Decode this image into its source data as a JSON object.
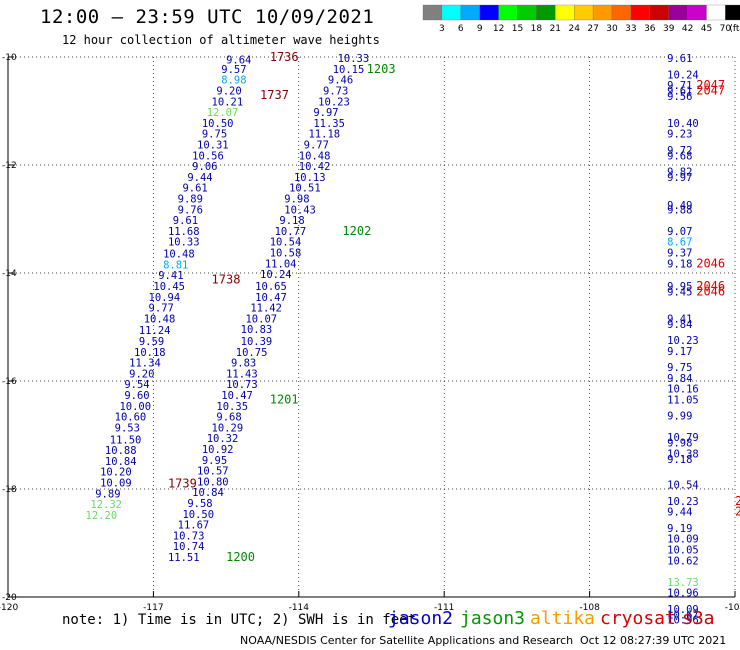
{
  "header": {
    "title": "12:00 – 23:59 UTC 10/09/2021",
    "subtitle": "12 hour collection of altimeter wave heights"
  },
  "colorbar": {
    "unit_label": "(ft)",
    "colors": [
      "#808080",
      "#00ffff",
      "#00aaff",
      "#0000ff",
      "#00ff00",
      "#00cc00",
      "#009900",
      "#ffff00",
      "#ffcc00",
      "#ff9900",
      "#ff6600",
      "#ff0000",
      "#cc0000",
      "#990099",
      "#cc00cc",
      "#ffffff",
      "#000000"
    ],
    "ticks": [
      "3",
      "6",
      "9",
      "12",
      "15",
      "18",
      "21",
      "24",
      "27",
      "30",
      "33",
      "36",
      "39",
      "42",
      "45",
      "70"
    ]
  },
  "note": "note: 1) Time is in UTC; 2) SWH is in feet",
  "satellites": [
    {
      "name": "jason2",
      "color": "#0000cc"
    },
    {
      "name": "jason3",
      "color": "#009900"
    },
    {
      "name": "altika",
      "color": "#ff9900"
    },
    {
      "name": "cryosat",
      "color": "#dd0000"
    },
    {
      "name": "s3a",
      "color": "#cc0000"
    }
  ],
  "footer": {
    "credit": "NOAA/NESDIS Center for Satellite Applications and Research",
    "timestamp": "Oct 12 08:27:39 UTC 2021"
  },
  "chart_data": {
    "type": "scatter",
    "title": "12:00 – 23:59 UTC 10/09/2021",
    "xlim": [
      -120,
      -105
    ],
    "ylim": [
      -20,
      -10
    ],
    "x_ticks": [
      -120,
      -117,
      -114,
      -111,
      -108,
      -105
    ],
    "y_ticks": [
      -10,
      -12,
      -14,
      -16,
      -18,
      -20
    ],
    "x_tick_labels": [
      "-120",
      "-117",
      "-114",
      "-111",
      "-108",
      "-105"
    ],
    "y_tick_labels": [
      "-10",
      "-12",
      "-14",
      "-16",
      "-18",
      "-20"
    ],
    "grid": "dotted",
    "legend": "bottom",
    "colors": {
      "dk": "#0000aa",
      "lc": "#00aaee",
      "lg": "#66dd66",
      "t": "#880000",
      "g": "#008800",
      "r": "#dd0000"
    },
    "points": [
      {
        "x": -115.5,
        "y": -10.05,
        "v": "9.64",
        "c": "dk"
      },
      {
        "x": -115.6,
        "y": -10.22,
        "v": "9.57",
        "c": "dk"
      },
      {
        "x": -115.6,
        "y": -10.42,
        "v": "8.98",
        "c": "lc"
      },
      {
        "x": -115.7,
        "y": -10.62,
        "v": "9.20",
        "c": "dk"
      },
      {
        "x": -115.8,
        "y": -10.82,
        "v": "10.21",
        "c": "dk"
      },
      {
        "x": -115.9,
        "y": -11.02,
        "v": "12.07",
        "c": "lg"
      },
      {
        "x": -116.0,
        "y": -11.22,
        "v": "10.50",
        "c": "dk"
      },
      {
        "x": -116.0,
        "y": -11.42,
        "v": "9.75",
        "c": "dk"
      },
      {
        "x": -116.1,
        "y": -11.62,
        "v": "10.31",
        "c": "dk"
      },
      {
        "x": -116.2,
        "y": -11.82,
        "v": "10.56",
        "c": "dk"
      },
      {
        "x": -116.2,
        "y": -12.02,
        "v": "9.06",
        "c": "dk"
      },
      {
        "x": -116.3,
        "y": -12.22,
        "v": "9.44",
        "c": "dk"
      },
      {
        "x": -116.4,
        "y": -12.42,
        "v": "9.61",
        "c": "dk"
      },
      {
        "x": -116.5,
        "y": -12.62,
        "v": "9.89",
        "c": "dk"
      },
      {
        "x": -116.5,
        "y": -12.82,
        "v": "9.76",
        "c": "dk"
      },
      {
        "x": -116.6,
        "y": -13.02,
        "v": "9.61",
        "c": "dk"
      },
      {
        "x": -116.7,
        "y": -13.22,
        "v": "11.68",
        "c": "dk"
      },
      {
        "x": -116.7,
        "y": -13.42,
        "v": "10.33",
        "c": "dk"
      },
      {
        "x": -116.8,
        "y": -13.64,
        "v": "10.48",
        "c": "dk"
      },
      {
        "x": -116.8,
        "y": -13.84,
        "v": "8.81",
        "c": "lc"
      },
      {
        "x": -116.9,
        "y": -14.04,
        "v": "9.41",
        "c": "dk"
      },
      {
        "x": -117.0,
        "y": -14.24,
        "v": "10.45",
        "c": "dk"
      },
      {
        "x": -117.1,
        "y": -14.44,
        "v": "10.94",
        "c": "dk"
      },
      {
        "x": -117.1,
        "y": -14.64,
        "v": "9.77",
        "c": "dk"
      },
      {
        "x": -117.2,
        "y": -14.84,
        "v": "10.48",
        "c": "dk"
      },
      {
        "x": -117.3,
        "y": -15.06,
        "v": "11.24",
        "c": "dk"
      },
      {
        "x": -117.3,
        "y": -15.26,
        "v": "9.59",
        "c": "dk"
      },
      {
        "x": -117.4,
        "y": -15.46,
        "v": "10.18",
        "c": "dk"
      },
      {
        "x": -117.5,
        "y": -15.66,
        "v": "11.34",
        "c": "dk"
      },
      {
        "x": -117.5,
        "y": -15.86,
        "v": "9.20",
        "c": "dk"
      },
      {
        "x": -117.6,
        "y": -16.06,
        "v": "9.54",
        "c": "dk"
      },
      {
        "x": -117.6,
        "y": -16.26,
        "v": "9.60",
        "c": "dk"
      },
      {
        "x": -117.7,
        "y": -16.46,
        "v": "10.00",
        "c": "dk"
      },
      {
        "x": -117.8,
        "y": -16.66,
        "v": "10.60",
        "c": "dk"
      },
      {
        "x": -117.8,
        "y": -16.86,
        "v": "9.53",
        "c": "dk"
      },
      {
        "x": -117.9,
        "y": -17.08,
        "v": "11.50",
        "c": "dk"
      },
      {
        "x": -118.0,
        "y": -17.28,
        "v": "10.88",
        "c": "dk"
      },
      {
        "x": -118.0,
        "y": -17.48,
        "v": "10.84",
        "c": "dk"
      },
      {
        "x": -118.1,
        "y": -17.68,
        "v": "10.20",
        "c": "dk"
      },
      {
        "x": -118.1,
        "y": -17.88,
        "v": "10.09",
        "c": "dk"
      },
      {
        "x": -118.2,
        "y": -18.08,
        "v": "9.89",
        "c": "dk"
      },
      {
        "x": -118.3,
        "y": -18.28,
        "v": "12.32",
        "c": "lg"
      },
      {
        "x": -118.4,
        "y": -18.48,
        "v": "12.20",
        "c": "lg"
      },
      {
        "x": -113.2,
        "y": -10.02,
        "v": "10.33",
        "c": "dk"
      },
      {
        "x": -113.3,
        "y": -10.22,
        "v": "10.15",
        "c": "dk"
      },
      {
        "x": -113.4,
        "y": -10.42,
        "v": "9.46",
        "c": "dk"
      },
      {
        "x": -113.5,
        "y": -10.62,
        "v": "9.73",
        "c": "dk"
      },
      {
        "x": -113.6,
        "y": -10.82,
        "v": "10.23",
        "c": "dk"
      },
      {
        "x": -113.7,
        "y": -11.02,
        "v": "9.97",
        "c": "dk"
      },
      {
        "x": -113.7,
        "y": -11.22,
        "v": "11.35",
        "c": "dk"
      },
      {
        "x": -113.8,
        "y": -11.42,
        "v": "11.18",
        "c": "dk"
      },
      {
        "x": -113.9,
        "y": -11.62,
        "v": "9.77",
        "c": "dk"
      },
      {
        "x": -114.0,
        "y": -11.82,
        "v": "10.48",
        "c": "dk"
      },
      {
        "x": -114.0,
        "y": -12.02,
        "v": "10.42",
        "c": "dk"
      },
      {
        "x": -114.1,
        "y": -12.22,
        "v": "10.13",
        "c": "dk"
      },
      {
        "x": -114.2,
        "y": -12.42,
        "v": "10.51",
        "c": "dk"
      },
      {
        "x": -114.3,
        "y": -12.62,
        "v": "9.98",
        "c": "dk"
      },
      {
        "x": -114.3,
        "y": -12.82,
        "v": "10.43",
        "c": "dk"
      },
      {
        "x": -114.4,
        "y": -13.02,
        "v": "9.18",
        "c": "dk"
      },
      {
        "x": -114.5,
        "y": -13.22,
        "v": "10.77",
        "c": "dk"
      },
      {
        "x": -114.6,
        "y": -13.42,
        "v": "10.54",
        "c": "dk"
      },
      {
        "x": -114.6,
        "y": -13.62,
        "v": "10.58",
        "c": "dk"
      },
      {
        "x": -114.7,
        "y": -13.82,
        "v": "11.04",
        "c": "dk"
      },
      {
        "x": -114.8,
        "y": -14.02,
        "v": "10.24",
        "c": "dk"
      },
      {
        "x": -114.9,
        "y": -14.24,
        "v": "10.65",
        "c": "dk"
      },
      {
        "x": -114.9,
        "y": -14.44,
        "v": "10.47",
        "c": "dk"
      },
      {
        "x": -115.0,
        "y": -14.64,
        "v": "11.42",
        "c": "dk"
      },
      {
        "x": -115.1,
        "y": -14.84,
        "v": "10.07",
        "c": "dk"
      },
      {
        "x": -115.2,
        "y": -15.04,
        "v": "10.83",
        "c": "dk"
      },
      {
        "x": -115.2,
        "y": -15.26,
        "v": "10.39",
        "c": "dk"
      },
      {
        "x": -115.3,
        "y": -15.46,
        "v": "10.75",
        "c": "dk"
      },
      {
        "x": -115.4,
        "y": -15.66,
        "v": "9.83",
        "c": "dk"
      },
      {
        "x": -115.5,
        "y": -15.86,
        "v": "11.43",
        "c": "dk"
      },
      {
        "x": -115.5,
        "y": -16.06,
        "v": "10.73",
        "c": "dk"
      },
      {
        "x": -115.6,
        "y": -16.26,
        "v": "10.47",
        "c": "dk"
      },
      {
        "x": -115.7,
        "y": -16.46,
        "v": "10.35",
        "c": "dk"
      },
      {
        "x": -115.7,
        "y": -16.66,
        "v": "9.68",
        "c": "dk"
      },
      {
        "x": -115.8,
        "y": -16.86,
        "v": "10.29",
        "c": "dk"
      },
      {
        "x": -115.9,
        "y": -17.06,
        "v": "10.32",
        "c": "dk"
      },
      {
        "x": -116.0,
        "y": -17.26,
        "v": "10.92",
        "c": "dk"
      },
      {
        "x": -116.0,
        "y": -17.46,
        "v": "9.95",
        "c": "dk"
      },
      {
        "x": -116.1,
        "y": -17.66,
        "v": "10.57",
        "c": "dk"
      },
      {
        "x": -116.1,
        "y": -17.86,
        "v": "10.80",
        "c": "dk"
      },
      {
        "x": -116.2,
        "y": -18.06,
        "v": "10.84",
        "c": "dk"
      },
      {
        "x": -116.3,
        "y": -18.26,
        "v": "9.58",
        "c": "dk"
      },
      {
        "x": -116.4,
        "y": -18.46,
        "v": "10.50",
        "c": "dk"
      },
      {
        "x": -116.5,
        "y": -18.66,
        "v": "11.67",
        "c": "dk"
      },
      {
        "x": -116.6,
        "y": -18.86,
        "v": "10.73",
        "c": "dk"
      },
      {
        "x": -116.6,
        "y": -19.06,
        "v": "10.74",
        "c": "dk"
      },
      {
        "x": -116.7,
        "y": -19.26,
        "v": "11.51",
        "c": "dk"
      },
      {
        "x": -106.4,
        "y": -10.02,
        "v": "9.61",
        "c": "dk"
      },
      {
        "x": -106.4,
        "y": -10.32,
        "v": "10.24",
        "c": "dk"
      },
      {
        "x": -106.4,
        "y": -10.52,
        "v": "9.71",
        "c": "dk"
      },
      {
        "x": -106.4,
        "y": -10.62,
        "v": "9.61",
        "c": "dk"
      },
      {
        "x": -106.4,
        "y": -10.72,
        "v": "9.56",
        "c": "dk"
      },
      {
        "x": -106.4,
        "y": -11.22,
        "v": "10.40",
        "c": "dk"
      },
      {
        "x": -106.4,
        "y": -11.42,
        "v": "9.23",
        "c": "dk"
      },
      {
        "x": -106.4,
        "y": -11.72,
        "v": "9.72",
        "c": "dk"
      },
      {
        "x": -106.4,
        "y": -11.82,
        "v": "9.68",
        "c": "dk"
      },
      {
        "x": -106.4,
        "y": -12.12,
        "v": "9.82",
        "c": "dk"
      },
      {
        "x": -106.4,
        "y": -12.22,
        "v": "9.97",
        "c": "dk"
      },
      {
        "x": -106.4,
        "y": -12.74,
        "v": "9.49",
        "c": "dk"
      },
      {
        "x": -106.4,
        "y": -12.82,
        "v": "9.88",
        "c": "dk"
      },
      {
        "x": -106.4,
        "y": -13.22,
        "v": "9.07",
        "c": "dk"
      },
      {
        "x": -106.4,
        "y": -13.42,
        "v": "8.67",
        "c": "lc"
      },
      {
        "x": -106.4,
        "y": -13.62,
        "v": "9.37",
        "c": "dk"
      },
      {
        "x": -106.4,
        "y": -13.82,
        "v": "9.18",
        "c": "dk"
      },
      {
        "x": -106.4,
        "y": -14.24,
        "v": "9.95",
        "c": "dk"
      },
      {
        "x": -106.4,
        "y": -14.34,
        "v": "9.45",
        "c": "dk"
      },
      {
        "x": -106.4,
        "y": -14.84,
        "v": "9.41",
        "c": "dk"
      },
      {
        "x": -106.4,
        "y": -14.94,
        "v": "9.84",
        "c": "dk"
      },
      {
        "x": -106.4,
        "y": -15.24,
        "v": "10.23",
        "c": "dk"
      },
      {
        "x": -106.4,
        "y": -15.44,
        "v": "9.17",
        "c": "dk"
      },
      {
        "x": -106.4,
        "y": -15.74,
        "v": "9.75",
        "c": "dk"
      },
      {
        "x": -106.4,
        "y": -15.94,
        "v": "9.84",
        "c": "dk"
      },
      {
        "x": -106.4,
        "y": -16.14,
        "v": "10.16",
        "c": "dk"
      },
      {
        "x": -106.4,
        "y": -16.34,
        "v": "11.05",
        "c": "dk"
      },
      {
        "x": -106.4,
        "y": -16.64,
        "v": "9.99",
        "c": "dk"
      },
      {
        "x": -106.4,
        "y": -17.04,
        "v": "10.79",
        "c": "dk"
      },
      {
        "x": -106.4,
        "y": -17.14,
        "v": "9.98",
        "c": "dk"
      },
      {
        "x": -106.4,
        "y": -17.34,
        "v": "10.38",
        "c": "dk"
      },
      {
        "x": -106.4,
        "y": -17.44,
        "v": "9.18",
        "c": "dk"
      },
      {
        "x": -106.4,
        "y": -17.92,
        "v": "10.54",
        "c": "dk"
      },
      {
        "x": -106.4,
        "y": -18.22,
        "v": "10.23",
        "c": "dk"
      },
      {
        "x": -106.4,
        "y": -18.42,
        "v": "9.44",
        "c": "dk"
      },
      {
        "x": -106.4,
        "y": -18.72,
        "v": "9.19",
        "c": "dk"
      },
      {
        "x": -106.4,
        "y": -18.92,
        "v": "10.09",
        "c": "dk"
      },
      {
        "x": -106.4,
        "y": -19.12,
        "v": "10.05",
        "c": "dk"
      },
      {
        "x": -106.4,
        "y": -19.32,
        "v": "10.62",
        "c": "dk"
      },
      {
        "x": -106.4,
        "y": -19.72,
        "v": "13.73",
        "c": "lg"
      },
      {
        "x": -106.4,
        "y": -19.92,
        "v": "10.96",
        "c": "dk"
      },
      {
        "x": -106.4,
        "y": -20.22,
        "v": "10.09",
        "c": "dk"
      },
      {
        "x": -106.4,
        "y": -20.32,
        "v": "10.67",
        "c": "dk"
      },
      {
        "x": -106.4,
        "y": -20.42,
        "v": "10.96",
        "c": "dk"
      }
    ],
    "time_labels": [
      {
        "x": -114.6,
        "y": -10.0,
        "v": "1736",
        "c": "t"
      },
      {
        "x": -114.8,
        "y": -10.7,
        "v": "1737",
        "c": "t"
      },
      {
        "x": -115.8,
        "y": -14.12,
        "v": "1738",
        "c": "t"
      },
      {
        "x": -116.7,
        "y": -17.9,
        "v": "1739",
        "c": "t"
      },
      {
        "x": -112.6,
        "y": -10.22,
        "v": "1203",
        "c": "g"
      },
      {
        "x": -113.1,
        "y": -13.22,
        "v": "1202",
        "c": "g"
      },
      {
        "x": -114.6,
        "y": -16.34,
        "v": "1201",
        "c": "g"
      },
      {
        "x": -115.5,
        "y": -19.26,
        "v": "1200",
        "c": "g"
      },
      {
        "x": -105.8,
        "y": -10.52,
        "v": "2047",
        "c": "r"
      },
      {
        "x": -105.8,
        "y": -10.62,
        "v": "2047",
        "c": "r"
      },
      {
        "x": -105.8,
        "y": -13.82,
        "v": "2046",
        "c": "r"
      },
      {
        "x": -105.8,
        "y": -14.24,
        "v": "2046",
        "c": "r"
      },
      {
        "x": -105.8,
        "y": -14.34,
        "v": "2046",
        "c": "r"
      },
      {
        "x": -105.0,
        "y": -18.22,
        "v": "20",
        "c": "r"
      },
      {
        "x": -105.0,
        "y": -18.42,
        "v": "20",
        "c": "r"
      }
    ]
  }
}
